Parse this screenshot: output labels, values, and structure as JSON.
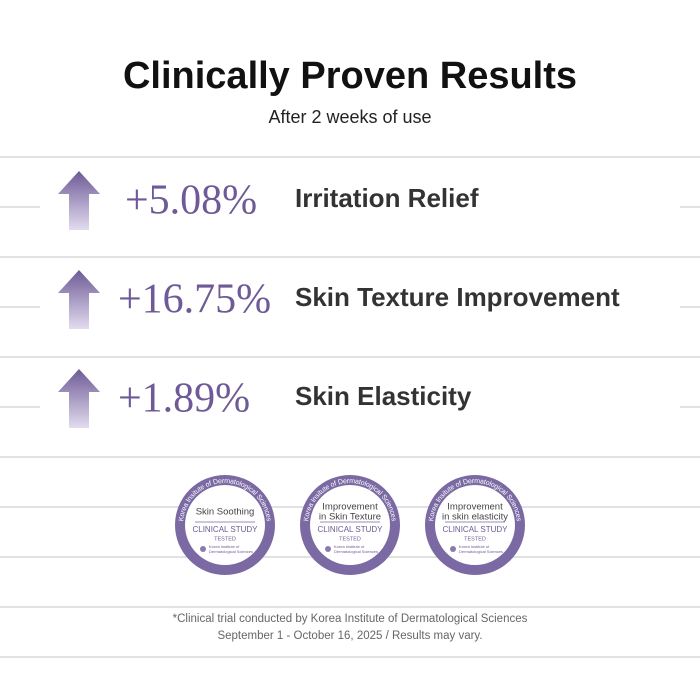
{
  "header": {
    "title": "Clinically Proven Results",
    "subtitle": "After 2 weeks of use"
  },
  "results": [
    {
      "value": "+5.08%",
      "label": "Irritation Relief"
    },
    {
      "value": "+16.75%",
      "label": "Skin Texture Improvement"
    },
    {
      "value": "+1.89%",
      "label": "Skin Elasticity"
    }
  ],
  "badges": [
    {
      "ring": "Korea Insitute of Dermatological Sciences",
      "title": [
        "Skin Soothing"
      ],
      "study": "CLINICAL STUDY",
      "tested": "TESTED",
      "org": [
        "Korea Institute of",
        "Dermatological Sciences"
      ]
    },
    {
      "ring": "Korea Insitute of Dermatological Sciences",
      "title": [
        "Improvement",
        "in Skin Texture"
      ],
      "study": "CLINICAL STUDY",
      "tested": "TESTED",
      "org": [
        "Korea Institute of",
        "Dermatological Sciences"
      ]
    },
    {
      "ring": "Korea Insitute of Dermatological Sciences",
      "title": [
        "Improvement",
        "in skin elasticity"
      ],
      "study": "CLINICAL STUDY",
      "tested": "TESTED",
      "org": [
        "Korea Institute of",
        "Dermatological Sciences"
      ]
    }
  ],
  "footnote": [
    "*Clinical trial conducted by Korea Institute of Dermatological Sciences",
    "September 1 - October 16, 2025 / Results may vary."
  ]
}
